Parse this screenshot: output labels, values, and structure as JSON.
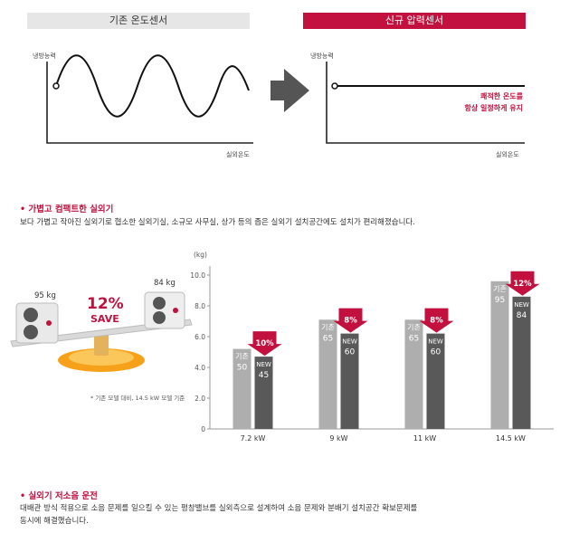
{
  "comparison": {
    "left_header": "기존 온도센서",
    "right_header": "신규 압력센서",
    "y_label": "냉방능력",
    "x_label": "실외온도",
    "right_note_line1": "쾌적한 온도를",
    "right_note_line2": "항상 일정하게 유지"
  },
  "section1": {
    "title": "가볍고 컴팩트한 실외기",
    "body": "보다 가볍고 작아진 실외기로 협소한 실외기실, 소규모 사무실, 상가 등의 좁은 실외기 설치공간에도 설치가 편리해졌습니다."
  },
  "illustration": {
    "left_weight": "95 kg",
    "right_weight": "84 kg",
    "save_percent": "12%",
    "save_word": "SAVE",
    "footnote": "* 기존 모델 대비, 14.5 kW 모델 기준"
  },
  "section2": {
    "title": "실외기 저소음 운전",
    "body_line1": "대배관 방식 적용으로 소음 문제를 일으킬 수 있는 평창밸브를 실외측으로 설계하여 소음 문제와 분배기 설치공간 확보문제를",
    "body_line2": "동시에 해결했습니다."
  },
  "colors": {
    "accent": "#c3113f",
    "bar_old": "#aeaeae",
    "bar_new": "#595959"
  },
  "chart_data": {
    "type": "bar",
    "unit_label": "(kg)",
    "categories": [
      "7.2 kW",
      "9 kW",
      "11 kW",
      "14.5 kW"
    ],
    "ylim": [
      0,
      10
    ],
    "yticks": [
      "0",
      "2.0",
      "4.0",
      "6.0",
      "8.0",
      "10.0"
    ],
    "series": [
      {
        "name": "기존",
        "values": [
          50,
          65,
          65,
          95
        ],
        "labels": [
          "50",
          "65",
          "65",
          "95"
        ]
      },
      {
        "name": "NEW",
        "values": [
          45,
          60,
          60,
          84
        ],
        "labels": [
          "45",
          "60",
          "60",
          "84"
        ]
      }
    ],
    "savings": [
      "10%",
      "8%",
      "8%",
      "12%"
    ],
    "bar_heights_on_axis": {
      "old": [
        5.2,
        7.1,
        7.1,
        9.6
      ],
      "new": [
        4.7,
        6.2,
        6.2,
        8.6
      ]
    }
  }
}
